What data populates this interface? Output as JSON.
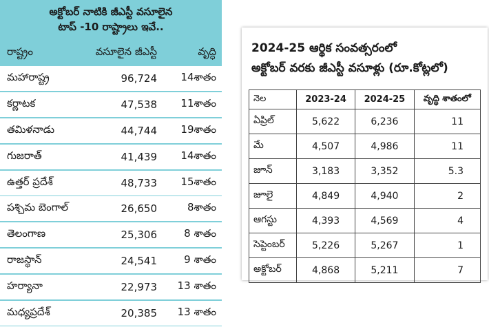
{
  "left": {
    "title_line1": "అక్టోబర్ నాటికి జీఎస్టీ వసూలైన",
    "title_line2": "టాప్ -10 రాష్ట్రాలు ఇవే..",
    "headers": [
      "రాష్ట్రం",
      "వసూలైన జీఎస్టీ",
      "వృద్ధి"
    ],
    "rows": [
      [
        "మహారాష్ట్ర",
        "96,724",
        "14శాతం"
      ],
      [
        "కర్ణాటక",
        "47,538",
        "11శాతం"
      ],
      [
        "తమిళనాడు",
        "44,744",
        "19శాతం"
      ],
      [
        "గుజరాత్",
        "41,439",
        "14శాతం"
      ],
      [
        "ఉత్తర్ ప్రదేశ్",
        "48,733",
        "15శాతం"
      ],
      [
        "పశ్చిమ బెంగాల్",
        "26,650",
        "8శాతం"
      ],
      [
        "తెలంగాణ",
        "25,306",
        "8 శాతం"
      ],
      [
        "రాజస్థాన్",
        "24,541",
        "9 శాతం"
      ],
      [
        "హర్యానా",
        "22,973",
        "13 శాతం"
      ],
      [
        "మధ్యప్రదేశ్",
        "20,385",
        "13 శాతం"
      ]
    ],
    "bg_color": "#7fcfd9"
  },
  "right": {
    "title_line1": "2024-25 ఆర్థిక సంవత్సరంలో",
    "title_line2": "అక్టోబర్ వరకు జీఎస్టీ వసూళ్లు (రూ.కోట్లలో)",
    "headers": [
      "నెల",
      "2023-24",
      "2024-25",
      "వృద్ధి శాతంలో"
    ],
    "rows": [
      [
        "ఏప్రిల్",
        "5,622",
        "6,236",
        "11"
      ],
      [
        "మే",
        "4,507",
        "4,986",
        "11"
      ],
      [
        "జూన్",
        "3,183",
        "3,352",
        "5.3"
      ],
      [
        "జూలై",
        "4,849",
        "4,940",
        "2"
      ],
      [
        "ఆగస్టు",
        "4,393",
        "4,569",
        "4"
      ],
      [
        "సెప్టెంబర్",
        "5,226",
        "5,267",
        "1"
      ],
      [
        "అక్టోబర్",
        "4,868",
        "5,211",
        "7"
      ]
    ]
  }
}
